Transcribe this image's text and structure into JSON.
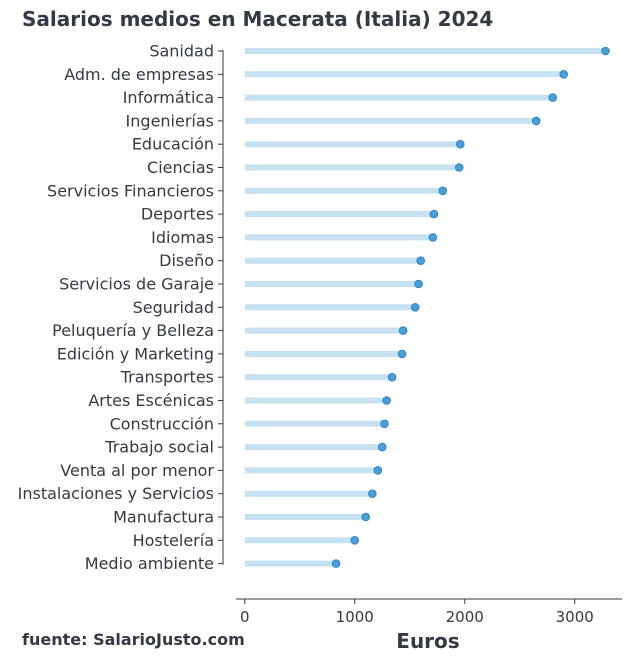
{
  "chart_data": {
    "type": "lollipop",
    "title": "Salarios medios en Macerata (Italia) 2024",
    "xlabel": "Euros",
    "ylabel": "",
    "source": "fuente: SalarioJusto.com",
    "xlim": [
      -80,
      3430
    ],
    "xticks": [
      0,
      1000,
      2000,
      3000
    ],
    "categories": [
      "Sanidad",
      "Adm. de empresas",
      "Informática",
      "Ingenierías",
      "Educación",
      "Ciencias",
      "Servicios Financieros",
      "Deportes",
      "Idiomas",
      "Diseño",
      "Servicios de Garaje",
      "Seguridad",
      "Peluquería y Belleza",
      "Edición y Marketing",
      "Transportes",
      "Artes Escénicas",
      "Construcción",
      "Trabajo social",
      "Venta al por menor",
      "Instalaciones y Servicios",
      "Manufactura",
      "Hostelería",
      "Medio ambiente"
    ],
    "values": [
      3280,
      2900,
      2800,
      2650,
      1960,
      1950,
      1800,
      1720,
      1710,
      1600,
      1580,
      1550,
      1440,
      1430,
      1340,
      1290,
      1270,
      1250,
      1210,
      1160,
      1100,
      1000,
      830
    ],
    "colors": {
      "bar": "#c6e1f2",
      "marker": "#4a9fd8",
      "marker_edge": "#2f86c4",
      "text": "#333a45",
      "axis": "#333a45"
    },
    "grid": false,
    "legend": "none"
  }
}
